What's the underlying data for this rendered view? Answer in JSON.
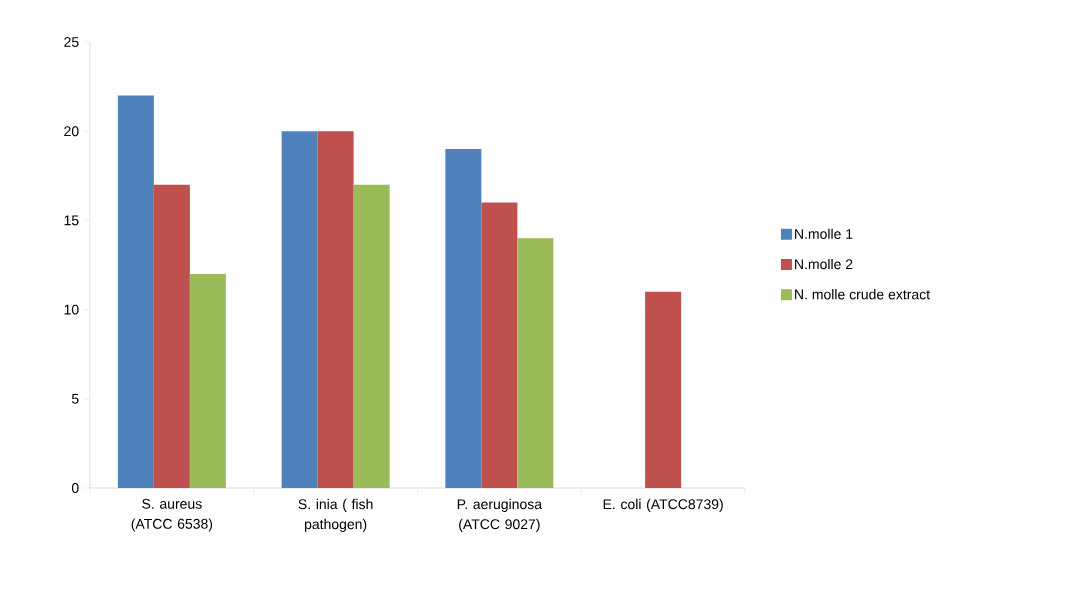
{
  "chart_data": {
    "type": "bar",
    "categories": [
      "S. aureus (ATCC 6538)",
      "S. inia ( fish pathogen)",
      "P. aeruginosa (ATCC 9027)",
      "E. coli (ATCC8739)"
    ],
    "series": [
      {
        "name": "N.molle 1",
        "color": "#4f81bd",
        "values": [
          22,
          20,
          19,
          0
        ]
      },
      {
        "name": "N.molle 2",
        "color": "#c0504d",
        "values": [
          17,
          20,
          16,
          11
        ]
      },
      {
        "name": "N. molle crude extract",
        "color": "#9bbb59",
        "values": [
          12,
          17,
          14,
          0
        ]
      }
    ],
    "ylim": [
      0,
      25
    ],
    "yticks": [
      0,
      5,
      10,
      15,
      20,
      25
    ],
    "legend": "right"
  }
}
